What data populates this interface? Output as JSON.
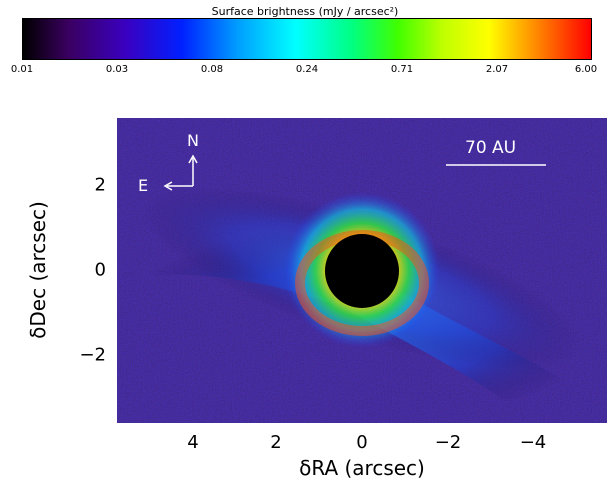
{
  "colorbar": {
    "title": "Surface brightness (mJy / arcsec²)",
    "ticks": [
      "0.01",
      "0.03",
      "0.08",
      "0.24",
      "0.71",
      "2.07",
      "6.00"
    ]
  },
  "image": {
    "compass_north": "N",
    "compass_east": "E",
    "scale_label": "70 AU"
  },
  "axes": {
    "xlabel": "δRA (arcsec)",
    "ylabel": "δDec (arcsec)",
    "xticks": [
      "4",
      "2",
      "0",
      "−2",
      "−4"
    ],
    "yticks": [
      "2",
      "0",
      "−2"
    ]
  },
  "colors": {
    "mask": "#000000",
    "background_noise": "#1a0a3a",
    "disk": "#1e5fff",
    "ring": "#30e060",
    "ring_bright": "#ff4020"
  }
}
